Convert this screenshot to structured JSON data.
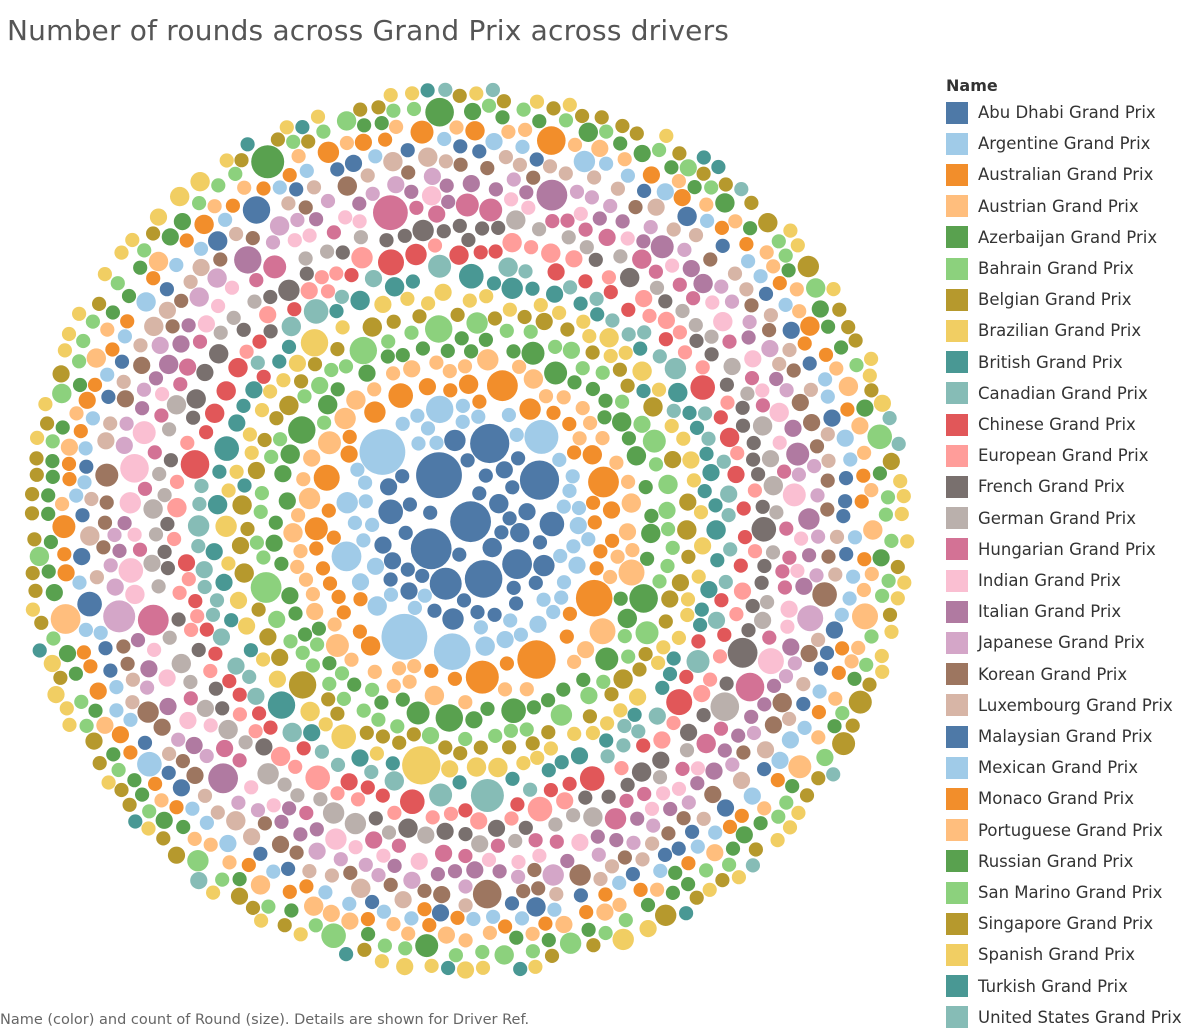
{
  "chart_data": {
    "type": "bubble",
    "title": "Number of rounds across Grand Prix across drivers",
    "caption": "Name (color) and count of Round (size).  Details are shown for Driver Ref.",
    "size_field": "count of Round",
    "color_field": "Name",
    "detail_field": "Driver Ref",
    "legend": {
      "title": "Name",
      "placement": "right",
      "entries": [
        {
          "name": "Abu Dhabi Grand Prix",
          "color": "#4e79a7"
        },
        {
          "name": "Argentine Grand Prix",
          "color": "#a0cbe8"
        },
        {
          "name": "Australian Grand Prix",
          "color": "#f28e2b"
        },
        {
          "name": "Austrian Grand Prix",
          "color": "#ffbe7d"
        },
        {
          "name": "Azerbaijan Grand Prix",
          "color": "#59a14f"
        },
        {
          "name": "Bahrain Grand Prix",
          "color": "#8cd17d"
        },
        {
          "name": "Belgian Grand Prix",
          "color": "#b6992d"
        },
        {
          "name": "Brazilian Grand Prix",
          "color": "#f1ce63"
        },
        {
          "name": "British Grand Prix",
          "color": "#499894"
        },
        {
          "name": "Canadian Grand Prix",
          "color": "#86bcb6"
        },
        {
          "name": "Chinese Grand Prix",
          "color": "#e15759"
        },
        {
          "name": "European Grand Prix",
          "color": "#ff9d9a"
        },
        {
          "name": "French Grand Prix",
          "color": "#79706e"
        },
        {
          "name": "German Grand Prix",
          "color": "#bab0ac"
        },
        {
          "name": "Hungarian Grand Prix",
          "color": "#d37295"
        },
        {
          "name": "Indian Grand Prix",
          "color": "#fabfd2"
        },
        {
          "name": "Italian Grand Prix",
          "color": "#b07aa1"
        },
        {
          "name": "Japanese Grand Prix",
          "color": "#d4a6c8"
        },
        {
          "name": "Korean Grand Prix",
          "color": "#9d7660"
        },
        {
          "name": "Luxembourg Grand Prix",
          "color": "#d7b5a6"
        },
        {
          "name": "Malaysian Grand Prix",
          "color": "#4e79a7"
        },
        {
          "name": "Mexican Grand Prix",
          "color": "#a0cbe8"
        },
        {
          "name": "Monaco Grand Prix",
          "color": "#f28e2b"
        },
        {
          "name": "Portuguese Grand Prix",
          "color": "#ffbe7d"
        },
        {
          "name": "Russian Grand Prix",
          "color": "#59a14f"
        },
        {
          "name": "San Marino Grand Prix",
          "color": "#8cd17d"
        },
        {
          "name": "Singapore Grand Prix",
          "color": "#b6992d"
        },
        {
          "name": "Spanish Grand Prix",
          "color": "#f1ce63"
        },
        {
          "name": "Turkish Grand Prix",
          "color": "#499894"
        },
        {
          "name": "United States Grand Prix",
          "color": "#86bcb6"
        }
      ]
    },
    "layout_note": "packed bubbles; groups arranged in concentric rings from center outward in legend order",
    "bubbles_per_group": 60,
    "count_range": [
      1,
      30
    ]
  }
}
